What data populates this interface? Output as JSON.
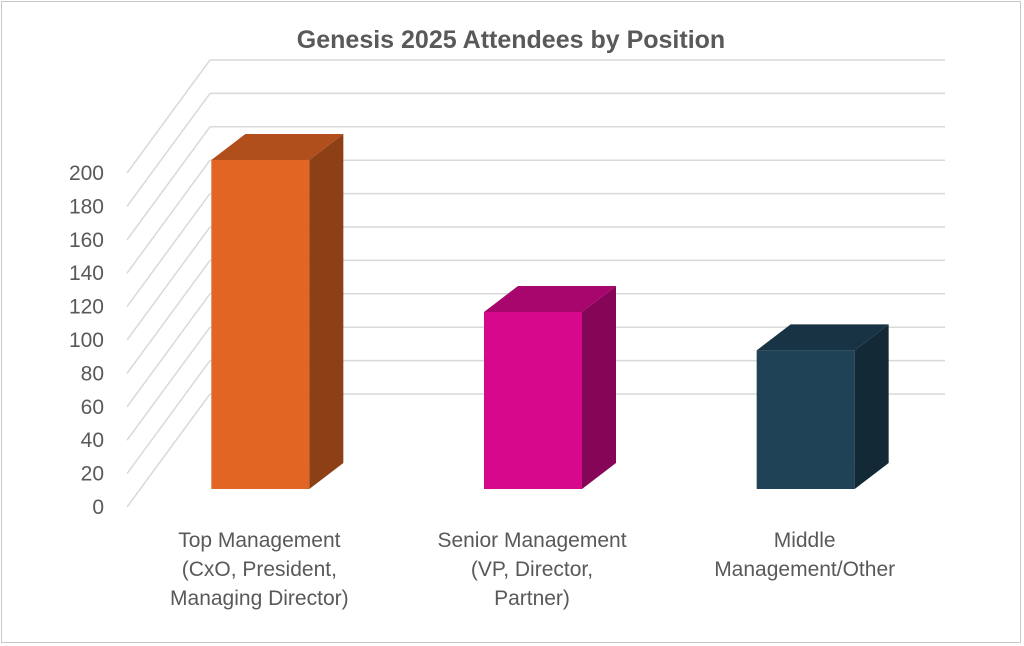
{
  "chart_data": {
    "type": "bar",
    "title": "Genesis 2025 Attendees by Position",
    "categories": [
      [
        "Top Management",
        "(CxO, President,",
        "Managing Director)"
      ],
      [
        "Senior Management",
        "(VP, Director,",
        "Partner)"
      ],
      [
        "Middle",
        "Management/Other"
      ]
    ],
    "values": [
      197,
      106,
      83
    ],
    "colors": [
      "#E36524",
      "#D6088C",
      "#1F4257"
    ],
    "ylim": [
      0,
      200
    ],
    "yticks": [
      0,
      20,
      40,
      60,
      80,
      100,
      120,
      140,
      160,
      180,
      200
    ],
    "grid": true,
    "xlabel": "",
    "ylabel": ""
  }
}
